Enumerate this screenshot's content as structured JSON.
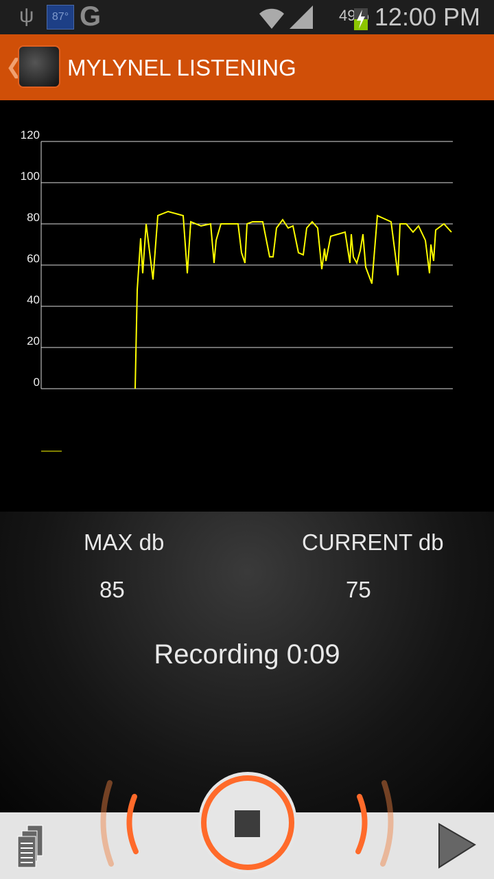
{
  "status_bar": {
    "weather": "87°",
    "battery": "49%",
    "time": "12:00 PM",
    "icons": [
      "usb-icon",
      "weather-icon",
      "google-icon",
      "wifi-icon",
      "signal-icon",
      "battery-charging-icon"
    ]
  },
  "app_bar": {
    "title": "MYLYNEL LISTENING",
    "icons": [
      "back-chevron-icon",
      "microphone-logo-icon"
    ]
  },
  "colors": {
    "app_bar": "#d04f08",
    "line": "#ffff00",
    "accent": "#ff6a2a"
  },
  "chart_data": {
    "type": "line",
    "ylim": [
      0,
      120
    ],
    "yticks": [
      "0",
      "20",
      "40",
      "60",
      "80",
      "100",
      "120"
    ],
    "grid": true,
    "legend": "bottom-left",
    "series": [
      {
        "color": "#ffff00",
        "points": [
          [
            137,
            0
          ],
          [
            140,
            48
          ],
          [
            145,
            73
          ],
          [
            148,
            56
          ],
          [
            153,
            80
          ],
          [
            163,
            53
          ],
          [
            170,
            84
          ],
          [
            185,
            86
          ],
          [
            207,
            84
          ],
          [
            213,
            56
          ],
          [
            218,
            81
          ],
          [
            233,
            79
          ],
          [
            247,
            80
          ],
          [
            252,
            61
          ],
          [
            255,
            72
          ],
          [
            262,
            80
          ],
          [
            287,
            80
          ],
          [
            292,
            66
          ],
          [
            297,
            61
          ],
          [
            300,
            80
          ],
          [
            308,
            81
          ],
          [
            323,
            81
          ],
          [
            333,
            64
          ],
          [
            338,
            64
          ],
          [
            343,
            78
          ],
          [
            352,
            82
          ],
          [
            360,
            78
          ],
          [
            367,
            79
          ],
          [
            375,
            66
          ],
          [
            382,
            65
          ],
          [
            387,
            78
          ],
          [
            395,
            81
          ],
          [
            403,
            78
          ],
          [
            409,
            58
          ],
          [
            413,
            68
          ],
          [
            415,
            62
          ],
          [
            422,
            74
          ],
          [
            443,
            76
          ],
          [
            450,
            61
          ],
          [
            452,
            75
          ],
          [
            455,
            64
          ],
          [
            460,
            61
          ],
          [
            465,
            67
          ],
          [
            469,
            75
          ],
          [
            473,
            59
          ],
          [
            482,
            51
          ],
          [
            490,
            84
          ],
          [
            510,
            81
          ],
          [
            520,
            55
          ],
          [
            523,
            80
          ],
          [
            532,
            80
          ],
          [
            542,
            76
          ],
          [
            550,
            79
          ],
          [
            560,
            72
          ],
          [
            566,
            56
          ],
          [
            568,
            70
          ],
          [
            572,
            62
          ],
          [
            575,
            77
          ],
          [
            587,
            80
          ],
          [
            598,
            76
          ]
        ]
      }
    ]
  },
  "stats": {
    "max_label": "MAX db",
    "max_value": "85",
    "current_label": "CURRENT db",
    "current_value": "75",
    "recording": "Recording 0:09"
  },
  "bottom_bar": {
    "icons": [
      "recordings-list-icon",
      "stop-record-icon",
      "play-icon"
    ]
  }
}
